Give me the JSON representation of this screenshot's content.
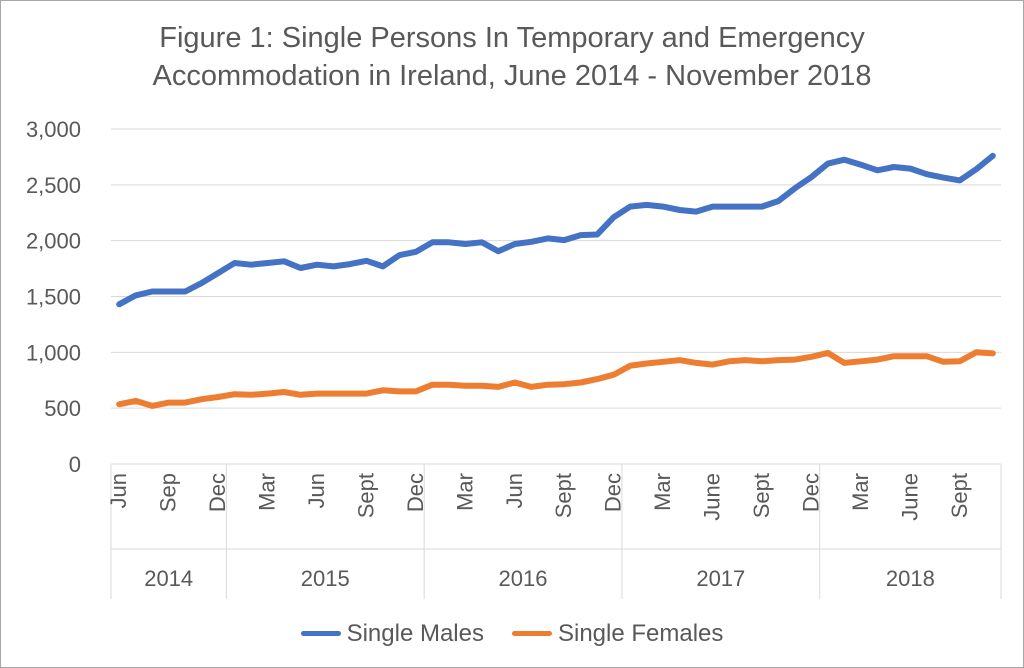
{
  "chart_data": {
    "type": "line",
    "title_line1": "Figure 1: Single Persons In Temporary and Emergency",
    "title_line2": "Accommodation in Ireland, June 2014 - November 2018",
    "ylim": [
      0,
      3000
    ],
    "yticks": [
      0,
      500,
      1000,
      1500,
      2000,
      2500,
      3000
    ],
    "ytick_labels": [
      "0",
      "500",
      "1,000",
      "1,500",
      "2,000",
      "2,500",
      "3,000"
    ],
    "grid": true,
    "legend_position": "bottom",
    "x_count": 54,
    "month_ticks": [
      {
        "i": 0,
        "label": "Jun"
      },
      {
        "i": 3,
        "label": "Sep"
      },
      {
        "i": 6,
        "label": "Dec"
      },
      {
        "i": 9,
        "label": "Mar"
      },
      {
        "i": 12,
        "label": "Jun"
      },
      {
        "i": 15,
        "label": "Sept"
      },
      {
        "i": 18,
        "label": "Dec"
      },
      {
        "i": 21,
        "label": "Mar"
      },
      {
        "i": 24,
        "label": "Jun"
      },
      {
        "i": 27,
        "label": "Sept"
      },
      {
        "i": 30,
        "label": "Dec"
      },
      {
        "i": 33,
        "label": "Mar"
      },
      {
        "i": 36,
        "label": "June"
      },
      {
        "i": 39,
        "label": "Sept"
      },
      {
        "i": 42,
        "label": "Dec"
      },
      {
        "i": 45,
        "label": "Mar"
      },
      {
        "i": 48,
        "label": "June"
      },
      {
        "i": 51,
        "label": "Sept"
      }
    ],
    "year_groups": [
      {
        "label": "2014",
        "start": 0,
        "end": 6
      },
      {
        "label": "2015",
        "start": 7,
        "end": 18
      },
      {
        "label": "2016",
        "start": 19,
        "end": 30
      },
      {
        "label": "2017",
        "start": 31,
        "end": 42
      },
      {
        "label": "2018",
        "start": 43,
        "end": 53
      }
    ],
    "series": [
      {
        "name": "Single Males",
        "color": "#4472C4",
        "values": [
          1430,
          1510,
          1545,
          1545,
          1545,
          1620,
          1710,
          1800,
          1785,
          1800,
          1815,
          1755,
          1785,
          1770,
          1790,
          1820,
          1770,
          1870,
          1900,
          1985,
          1985,
          1970,
          1985,
          1905,
          1970,
          1990,
          2020,
          2005,
          2050,
          2055,
          2210,
          2305,
          2320,
          2305,
          2275,
          2260,
          2305,
          2305,
          2305,
          2305,
          2355,
          2470,
          2570,
          2690,
          2725,
          2680,
          2630,
          2660,
          2645,
          2595,
          2565,
          2540,
          2640,
          2760
        ]
      },
      {
        "name": "Single Females",
        "color": "#ED7D31",
        "values": [
          535,
          565,
          520,
          550,
          550,
          580,
          600,
          625,
          620,
          630,
          645,
          620,
          630,
          630,
          630,
          630,
          660,
          650,
          650,
          710,
          710,
          700,
          700,
          690,
          730,
          690,
          710,
          715,
          730,
          760,
          800,
          880,
          900,
          915,
          930,
          905,
          890,
          920,
          930,
          920,
          930,
          935,
          960,
          995,
          905,
          920,
          935,
          965,
          965,
          965,
          915,
          920,
          1000,
          990
        ]
      }
    ]
  }
}
